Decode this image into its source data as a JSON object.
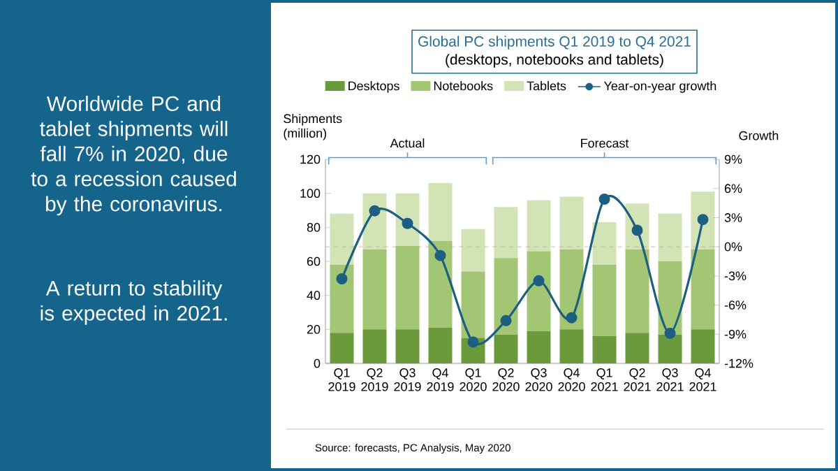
{
  "chart_data": {
    "type": "bar",
    "title": "Global PC shipments Q1 2019 to Q4 2021",
    "subtitle": "(desktops, notebooks and tablets)",
    "ylabel": "Shipments (million)",
    "y2label": "Growth",
    "categories": [
      "Q1 2019",
      "Q2 2019",
      "Q3 2019",
      "Q4 2019",
      "Q1 2020",
      "Q2 2020",
      "Q3 2020",
      "Q4 2020",
      "Q1 2021",
      "Q2 2021",
      "Q3 2021",
      "Q4 2021"
    ],
    "stacked": true,
    "series": [
      {
        "name": "Desktops",
        "color": "#6b9a3c",
        "values": [
          18,
          20,
          20,
          21,
          15,
          17,
          19,
          20,
          16,
          18,
          17,
          20
        ]
      },
      {
        "name": "Notebooks",
        "color": "#a2c673",
        "values": [
          40,
          47,
          49,
          51,
          39,
          45,
          47,
          47,
          42,
          49,
          43,
          47
        ]
      },
      {
        "name": "Tablets",
        "color": "#d2e3b5",
        "values": [
          30,
          33,
          31,
          34,
          25,
          30,
          30,
          31,
          25,
          27,
          28,
          34
        ]
      },
      {
        "name": "Year-on-year growth",
        "type": "line",
        "axis": "y2",
        "marker": "circle",
        "color": "#1d5f80",
        "values": [
          -3.3,
          3.7,
          2.4,
          -0.9,
          -9.8,
          -7.6,
          -3.5,
          -7.3,
          4.9,
          1.7,
          -8.9,
          2.8
        ]
      }
    ],
    "ylim": [
      0,
      120
    ],
    "yticks": [
      0,
      20,
      40,
      60,
      80,
      100,
      120
    ],
    "y2lim": [
      -12,
      9
    ],
    "y2ticks": [
      {
        "value": -12,
        "label": "-12%"
      },
      {
        "value": -9,
        "label": "-9%"
      },
      {
        "value": -6,
        "label": "-6%"
      },
      {
        "value": -3,
        "label": "-3%"
      },
      {
        "value": 0,
        "label": "0%"
      },
      {
        "value": 3,
        "label": "3%"
      },
      {
        "value": 6,
        "label": "6%"
      },
      {
        "value": 9,
        "label": "9%"
      }
    ],
    "ref_lines": [
      {
        "axis": "y2",
        "value": 0,
        "color": "#d4a0a0",
        "line_style": "dashed"
      }
    ],
    "legend": "top",
    "annotations": [
      "Worldwide PC and tablet shipments will fall 7% in 2020, due to a recession caused by the coronavirus.",
      "A return to stability is expected in 2021.",
      "Actual",
      "Forecast",
      "Source: forecasts, PC Analysis, May 2020"
    ]
  }
}
